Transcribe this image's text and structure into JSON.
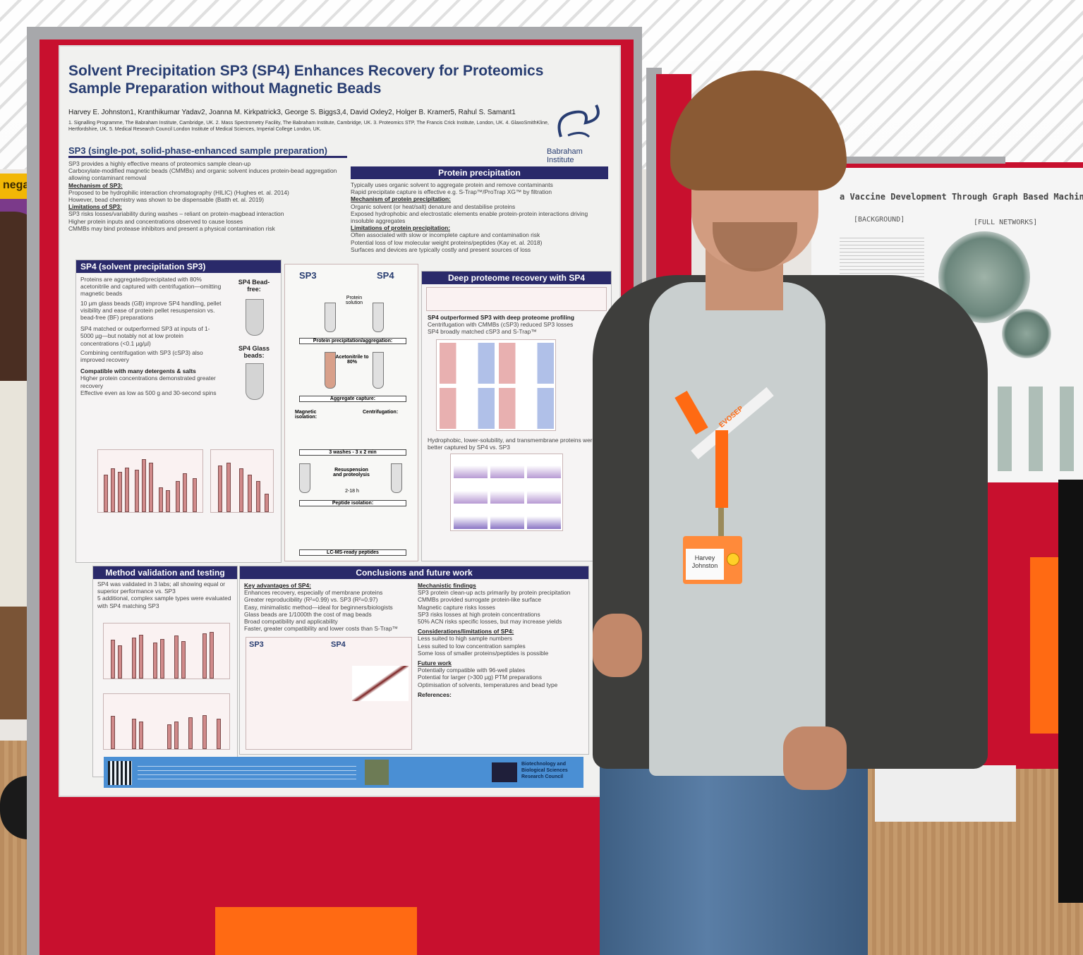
{
  "scene": {
    "colors": {
      "board_red": "#c8102e",
      "poster_navy": "#283d71",
      "lanyard_orange": "#ff6a13"
    }
  },
  "poster": {
    "title": "Solvent Precipitation SP3 (SP4) Enhances Recovery for Proteomics Sample Preparation without Magnetic Beads",
    "authors": "Harvey E. Johnston1, Kranthikumar Yadav2, Joanna M. Kirkpatrick3, George S. Biggs3,4, David Oxley2, Holger B. Kramer5, Rahul S. Samant1",
    "affiliations": "1. Signalling Programme, The Babraham Institute, Cambridge, UK. 2. Mass Spectrometry Facility, The Babraham Institute, Cambridge, UK. 3. Proteomics STP, The Francis Crick Institute, London, UK. 4. GlaxoSmithKline, Hertfordshire, UK. 5. Medical Research Council London Institute of Medical Sciences, Imperial College London, UK.",
    "logo_text": "Babraham Institute",
    "sp3_header": "SP3 (single-pot, solid-phase-enhanced sample preparation)",
    "sp3_lines": [
      "SP3 provides a highly effective means of proteomics sample clean-up",
      "Carboxylate-modified magnetic beads (CMMBs) and organic solvent induces protein-bead aggregation allowing contaminant removal",
      "Mechanism of SP3:",
      "Proposed to be hydrophilic interaction chromatography (HILIC) (Hughes et. al. 2014)",
      "However, bead chemistry was shown to be dispensable (Batth et. al. 2019)",
      "Limitations of SP3:",
      "SP3 risks losses/variability during washes – reliant on protein-magbead interaction",
      "Higher protein inputs and concentrations observed to cause losses",
      "CMMBs may bind protease inhibitors and present a physical contamination risk"
    ],
    "pp_header": "Protein precipitation",
    "pp_lines": [
      "Typically uses organic solvent to aggregate protein and remove contaminants",
      "Rapid precipitate capture is effective e.g. S-Trap™/ProTrap XG™ by filtration",
      "Mechanism of protein precipitation:",
      "Organic solvent (or heat/salt) denature and destabilise proteins",
      "Exposed hydrophobic and electrostatic elements enable protein-protein interactions driving insoluble aggregates",
      "Limitations of protein precipitation:",
      "Often associated with slow or incomplete capture and contamination risk",
      "Potential loss of low molecular weight proteins/peptides (Kay et. al. 2018)",
      "Surfaces and devices are typically costly and present sources of loss"
    ],
    "sp4_header": "SP4 (solvent precipitation SP3)",
    "sp4_lines": [
      "Proteins are aggregated/precipitated with 80% acetonitrile and captured with centrifugation—omitting magnetic beads",
      "10 µm glass beads (GB) improve SP4 handling, pellet visibility and ease of protein pellet resuspension vs. bead-free (BF) preparations",
      "SP4 matched or outperformed SP3 at inputs of 1-5000 µg—but notably not at low protein concentrations (<0.1 µg/µl)",
      "Combining centrifugation with SP3 (cSP3) also improved recovery",
      "Compatible with many detergents & salts",
      "Higher protein concentrations demonstrated greater recovery",
      "Effective even as low as 500 g and 30-second spins"
    ],
    "sp4_beadfree": "SP4 Bead-free:",
    "sp4_glass": "SP4 Glass beads:",
    "workflow_labels": [
      "SP3",
      "SP4",
      "Protein solution",
      "Protein precipitation/aggregation:",
      "Acetonitrile to 80%",
      "Aggregate capture:",
      "Magnetic isolation:",
      "Centrifugation:",
      "3 washes - 3 x 2 min",
      "Resuspension and proteolysis",
      "2-18 h",
      "Peptide isolation:",
      "LC-MS-ready peptides"
    ],
    "deep_header": "Deep proteome recovery with SP4",
    "deep_lines": [
      "SP4 outperformed SP3 with deep proteome profiling",
      "Centrifugation with CMMBs (cSP3) reduced SP3 losses",
      "SP4 broadly matched cSP3 and S-Trap™",
      "Hydrophobic, lower-solubility, and transmembrane proteins were better captured by SP4 vs. SP3"
    ],
    "mv_header": "Method validation and testing",
    "mv_lines": [
      "SP4 was validated in 3 labs; all showing equal or superior performance vs. SP3",
      "5 additional, complex sample types were evaluated with SP4 matching SP3"
    ],
    "conc_header": "Conclusions and future work",
    "conc_key_title": "Key advantages of SP4:",
    "conc_key": [
      "Enhances recovery, especially of membrane proteins",
      "Greater reproducibility (R²=0.99) vs. SP3 (R²=0.97)",
      "Easy, minimalistic method—ideal for beginners/biologists",
      "Glass beads are 1/1000th the cost of mag beads",
      "Broad compatibility and applicability",
      "Faster, greater compatibility and lower costs than S-Trap™"
    ],
    "conc_mech_title": "Mechanistic findings",
    "conc_mech": [
      "SP3 protein clean-up acts primarily by protein precipitation",
      "CMMBs provided surrogate protein-like surface",
      "Magnetic capture risks losses",
      "SP3 risks losses at high protein concentrations",
      "50% ACN risks specific losses, but may increase yields"
    ],
    "conc_lim_title": "Considerations/limitations of SP4:",
    "conc_lim": [
      "Less suited to high sample numbers",
      "Less suited to low concentration samples",
      "Some loss of smaller proteins/peptides is possible"
    ],
    "conc_fut_title": "Future work",
    "conc_fut": [
      "Potentially compatible with 96-well plates",
      "Potential for larger (>300 µg) PTM preparations",
      "Optimisation of solvents, temperatures and bead type"
    ],
    "references_title": "References:",
    "footer_brand": "Biotechnology and Biological Sciences Research Council"
  },
  "right_poster": {
    "title_fragment": "a Vaccine Development Through Graph Based Machine Lea",
    "tags": [
      "[BACKGROUND]",
      "[FULL NETWORKS]"
    ]
  },
  "left_sign": {
    "text": "nega"
  },
  "badge": {
    "name": "Harvey Johnston"
  },
  "lanyard": {
    "text": "EVOSEP"
  }
}
